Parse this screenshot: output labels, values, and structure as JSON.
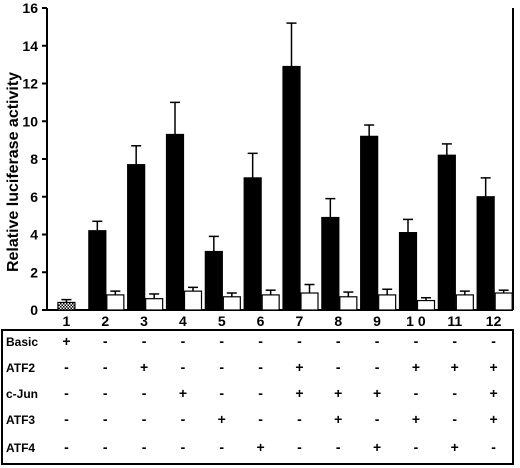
{
  "chart_data": {
    "type": "bar",
    "title": "",
    "xlabel": "",
    "ylabel": "Relative luciferase activity",
    "ylim": [
      0,
      16
    ],
    "yticks": [
      "0",
      "2",
      "4",
      "6",
      "8",
      "10",
      "12",
      "14",
      "16"
    ],
    "categories": [
      "1",
      "2",
      "3",
      "4",
      "5",
      "6",
      "7",
      "8",
      "9",
      "1 0",
      "11",
      "12"
    ],
    "grid": false,
    "legend": "none",
    "colors": {
      "filled": "#000000",
      "open": "#ffffff",
      "hatched": "#bbbbbb"
    },
    "series": [
      {
        "style": "black",
        "values": [
          null,
          4.2,
          7.7,
          9.3,
          3.1,
          7.0,
          12.9,
          4.9,
          9.2,
          4.1,
          8.2,
          6.0
        ],
        "errors": [
          null,
          0.5,
          1.0,
          1.7,
          0.8,
          1.3,
          2.3,
          1.0,
          0.6,
          0.7,
          0.6,
          1.0
        ]
      },
      {
        "style": "white",
        "values": [
          0.4,
          0.8,
          0.6,
          1.0,
          0.7,
          0.8,
          0.9,
          0.7,
          0.8,
          0.5,
          0.8,
          0.9
        ],
        "errors": [
          0.15,
          0.2,
          0.25,
          0.2,
          0.2,
          0.25,
          0.45,
          0.25,
          0.3,
          0.15,
          0.2,
          0.15
        ]
      }
    ],
    "first_bar_style": "hatched",
    "table": {
      "rows": [
        {
          "label": "Basic",
          "signs": [
            "+",
            "-",
            "-",
            "-",
            "-",
            "-",
            "-",
            "-",
            "-",
            "-",
            "-",
            "-"
          ]
        },
        {
          "label": "ATF2",
          "signs": [
            "-",
            "-",
            "+",
            "-",
            "-",
            "-",
            "+",
            "-",
            "-",
            "+",
            "+",
            "+"
          ]
        },
        {
          "label": "c-Jun",
          "signs": [
            "-",
            "-",
            "-",
            "+",
            "-",
            "-",
            "+",
            "+",
            "+",
            "-",
            "-",
            "+"
          ]
        },
        {
          "label": "ATF3",
          "signs": [
            "-",
            "-",
            "-",
            "-",
            "+",
            "-",
            "-",
            "+",
            "-",
            "+",
            "-",
            "+"
          ]
        },
        {
          "label": "ATF4",
          "signs": [
            "-",
            "-",
            "-",
            "-",
            "-",
            "+",
            "-",
            "-",
            "+",
            "-",
            "+",
            "-"
          ]
        }
      ]
    }
  }
}
